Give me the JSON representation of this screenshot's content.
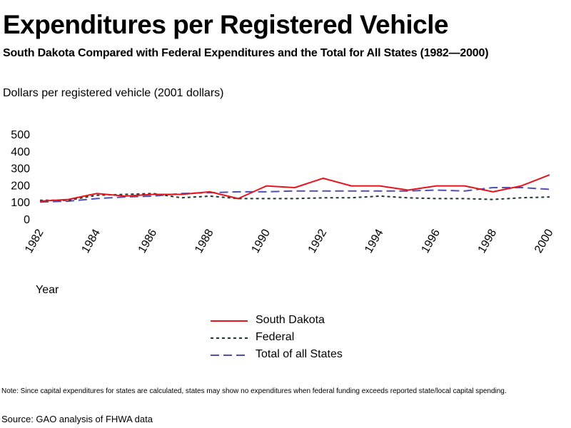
{
  "header": {
    "title": "Expenditures per Registered Vehicle",
    "subtitle": "South Dakota Compared with Federal Expenditures and the Total for All States (1982—2000)"
  },
  "note": "Note: Since capital expenditures for states are calculated, states may show no expenditures when federal funding exceeds reported state/local capital spending.",
  "source": "Source: GAO analysis of FHWA data",
  "chart_data": {
    "type": "line",
    "title": "Expenditures per Registered Vehicle",
    "subtitle": "South Dakota Compared with Federal Expenditures and the Total for All States (1982—2000)",
    "ylabel": "Dollars per registered vehicle (2001 dollars)",
    "xlabel": "Year",
    "x": [
      1982,
      1983,
      1984,
      1985,
      1986,
      1987,
      1988,
      1989,
      1990,
      1991,
      1992,
      1993,
      1994,
      1995,
      1996,
      1997,
      1998,
      1999,
      2000
    ],
    "x_ticks": [
      "1982",
      "1984",
      "1986",
      "1988",
      "1990",
      "1992",
      "1994",
      "1996",
      "1998",
      "2000"
    ],
    "y_ticks": [
      "0",
      "100",
      "200",
      "300",
      "400",
      "500"
    ],
    "ylim": [
      0,
      500
    ],
    "xlim": [
      1982,
      2000
    ],
    "grid": false,
    "legend_position": "bottom-center",
    "series": [
      {
        "name": "South Dakota",
        "color": "#e8141b",
        "style": "solid",
        "values": [
          105,
          115,
          150,
          135,
          145,
          145,
          160,
          120,
          195,
          185,
          240,
          195,
          195,
          170,
          195,
          195,
          160,
          195,
          260
        ]
      },
      {
        "name": "Federal",
        "color": "#1f3a2a",
        "style": "dotted",
        "values": [
          110,
          110,
          140,
          145,
          150,
          125,
          135,
          120,
          120,
          120,
          125,
          125,
          135,
          125,
          120,
          120,
          115,
          125,
          130
        ]
      },
      {
        "name": "Total of all States",
        "color": "#5050b0",
        "style": "dashed",
        "values": [
          100,
          105,
          120,
          130,
          135,
          150,
          155,
          160,
          160,
          165,
          165,
          165,
          165,
          165,
          170,
          165,
          185,
          185,
          175
        ]
      }
    ]
  }
}
